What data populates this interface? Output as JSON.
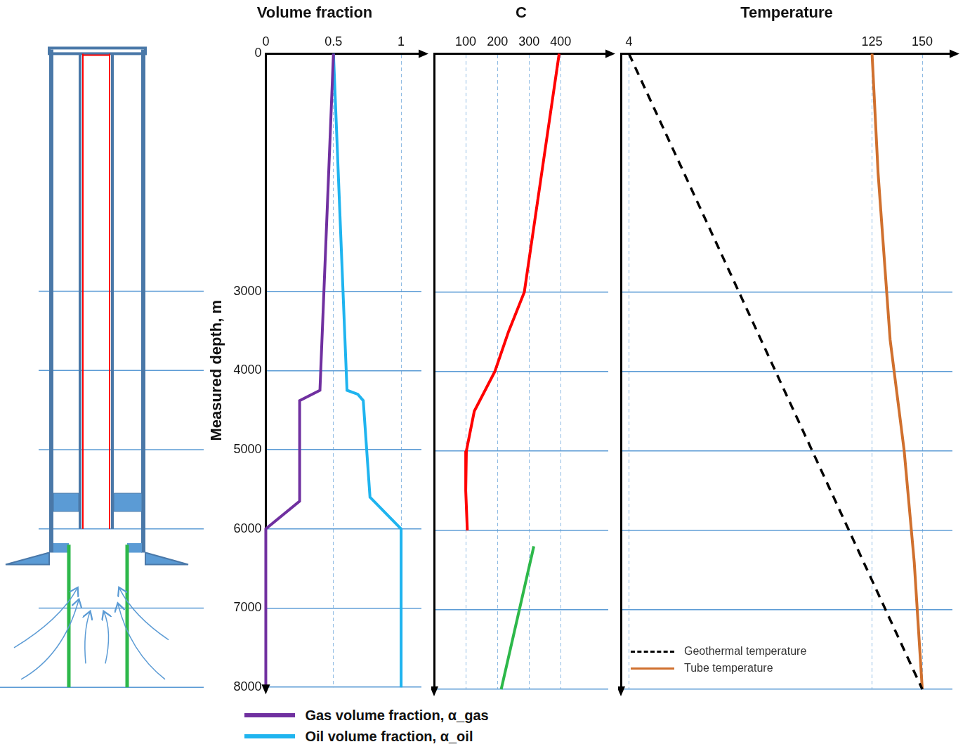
{
  "chart_data": [
    {
      "type": "line",
      "title": "Volume fraction",
      "y_label": "Measured depth, m",
      "xlim": [
        0,
        1.15
      ],
      "xticks": [
        0,
        0.5,
        1
      ],
      "ylim": [
        0,
        8000
      ],
      "yticks": [
        0,
        3000,
        4000,
        5000,
        6000,
        7000,
        8000
      ],
      "grid": true,
      "legend": "bottom",
      "series": [
        {
          "name": "Gas volume fraction, α_gas",
          "color": "#7030a0",
          "depth": [
            0,
            4250,
            4380,
            5650,
            6000,
            8000
          ],
          "values": [
            0.5,
            0.4,
            0.25,
            0.25,
            0,
            0
          ]
        },
        {
          "name": "Oil volume fraction, α_oil",
          "color": "#1fb4ef",
          "depth": [
            0,
            4250,
            4300,
            4380,
            5600,
            6000,
            8000
          ],
          "values": [
            0.5,
            0.6,
            0.68,
            0.72,
            0.77,
            1,
            1
          ]
        }
      ]
    },
    {
      "type": "line",
      "title": "C",
      "xlim": [
        0,
        550
      ],
      "xticks": [
        100,
        200,
        300,
        400
      ],
      "ylim": [
        0,
        8000
      ],
      "yticks": [
        0,
        3000,
        4000,
        5000,
        6000,
        7000,
        8000
      ],
      "grid": true,
      "tick_labels": "x",
      "series": [
        {
          "color": "#ff0000",
          "depth": [
            0,
            1500,
            3000,
            3500,
            4000,
            4500,
            5000,
            5500,
            6000
          ],
          "values": [
            395,
            340,
            285,
            235,
            192,
            127,
            102,
            100,
            105
          ]
        },
        {
          "color": "#2db84a",
          "depth": [
            6200,
            8000
          ],
          "values": [
            315,
            212
          ]
        }
      ]
    },
    {
      "type": "line",
      "title": "Temperature",
      "xlim": [
        0,
        165
      ],
      "xticks": [
        4,
        125,
        150
      ],
      "ylim": [
        0,
        8000
      ],
      "yticks": [
        0,
        3000,
        4000,
        5000,
        6000,
        7000,
        8000
      ],
      "grid": true,
      "tick_labels": "x",
      "legend": "bottom-left",
      "series": [
        {
          "name": "Geothermal temperature",
          "color": "#000000",
          "line_style": "dashed",
          "depth": [
            0,
            8000
          ],
          "values": [
            4,
            150
          ]
        },
        {
          "name": "Tube temperature",
          "color": "#d0702e",
          "line_style": "solid",
          "depth": [
            0,
            1500,
            3600,
            5000,
            6400,
            7200,
            8000
          ],
          "values": [
            125,
            128,
            134,
            141,
            146,
            148,
            150
          ]
        }
      ]
    }
  ]
}
